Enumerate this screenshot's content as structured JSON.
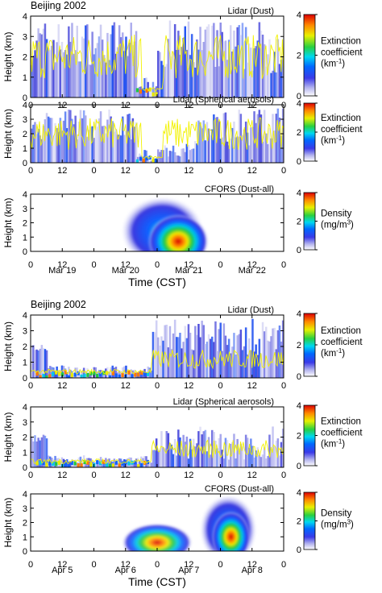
{
  "chart_data": [
    {
      "type": "heatmap",
      "heading": "Beijing 2002",
      "x_ticks": [
        "0",
        "12",
        "0",
        "12",
        "0",
        "12",
        "0",
        "12",
        "0"
      ],
      "date_labels": [
        "Mar 19",
        "Mar 20",
        "Mar 21",
        "Mar 22"
      ],
      "xlabel": "Time (CST)",
      "panels": [
        {
          "title": "Lidar (Dust)",
          "ylabel": "Height (km)",
          "yticks": [
            "0",
            "1",
            "2",
            "3",
            "4"
          ],
          "ylim": [
            0,
            4
          ],
          "colorbar": {
            "title_lines": [
              "Extinction",
              "coefficient"
            ],
            "unit": "(km",
            "unit_sup": "-1",
            "unit_end": ")",
            "ticks": [
              "0",
              "2",
              "4"
            ],
            "range": [
              0,
              4
            ]
          }
        },
        {
          "title": "Lidar (Spherical aerosols)",
          "ylabel": "Height (km)",
          "yticks": [
            "0",
            "1",
            "2",
            "3",
            "4"
          ],
          "ylim": [
            0,
            4
          ],
          "colorbar": {
            "title_lines": [
              "Extinction",
              "coefficient"
            ],
            "unit": "(km",
            "unit_sup": "-1",
            "unit_end": ")",
            "ticks": [
              "0",
              "2",
              "4"
            ],
            "range": [
              0,
              4
            ]
          }
        },
        {
          "title": "CFORS (Dust-all)",
          "ylabel": "Height (km)",
          "yticks": [
            "0",
            "1",
            "2",
            "3",
            "4"
          ],
          "ylim": [
            0,
            4
          ],
          "colorbar": {
            "title_lines": [
              "Density"
            ],
            "unit": "(mg/m",
            "unit_sup": "3",
            "unit_end": ")",
            "ticks": [
              "0",
              "2",
              "4"
            ],
            "range": [
              0,
              4
            ]
          }
        }
      ]
    },
    {
      "type": "heatmap",
      "heading": "Beijing 2002",
      "x_ticks": [
        "0",
        "12",
        "0",
        "12",
        "0",
        "12",
        "0",
        "12",
        "0"
      ],
      "date_labels": [
        "Apr 5",
        "Apr 6",
        "Apr 7",
        "Apr 8"
      ],
      "xlabel": "Time (CST)",
      "panels": [
        {
          "title": "Lidar (Dust)",
          "ylabel": "Height (km)",
          "yticks": [
            "0",
            "1",
            "2",
            "3",
            "4"
          ],
          "ylim": [
            0,
            4
          ],
          "colorbar": {
            "title_lines": [
              "Extinction",
              "coefficient"
            ],
            "unit": "(km",
            "unit_sup": "-1",
            "unit_end": ")",
            "ticks": [
              "0",
              "2",
              "4"
            ],
            "range": [
              0,
              4
            ]
          }
        },
        {
          "title": "Lidar (Spherical aerosols)",
          "ylabel": "Height (km)",
          "yticks": [
            "0",
            "1",
            "2",
            "3",
            "4"
          ],
          "ylim": [
            0,
            4
          ],
          "colorbar": {
            "title_lines": [
              "Extinction",
              "coefficient"
            ],
            "unit": "(km",
            "unit_sup": "-1",
            "unit_end": ")",
            "ticks": [
              "0",
              "2",
              "4"
            ],
            "range": [
              0,
              4
            ]
          }
        },
        {
          "title": "CFORS (Dust-all)",
          "ylabel": "Height (km)",
          "yticks": [
            "0",
            "1",
            "2",
            "3",
            "4"
          ],
          "ylim": [
            0,
            4
          ],
          "colorbar": {
            "title_lines": [
              "Density"
            ],
            "unit": "(mg/m",
            "unit_sup": "3",
            "unit_end": ")",
            "ticks": [
              "0",
              "2",
              "4"
            ],
            "range": [
              0,
              4
            ]
          }
        }
      ]
    }
  ]
}
